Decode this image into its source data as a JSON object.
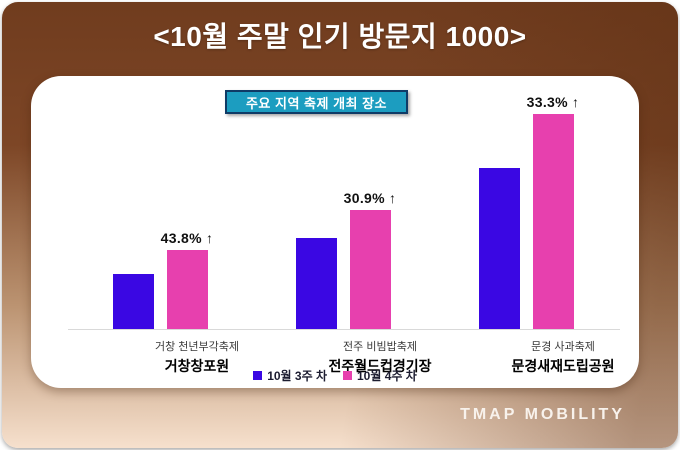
{
  "poster": {
    "title": "<10월 주말 인기 방문지 1000>",
    "brand": "TMAP MOBILITY",
    "colors": {
      "background_top": "#703c1e",
      "background_bottom_left": "#f6e0cd",
      "card": "#ffffff",
      "badge_bg": "#1c9dc0",
      "badge_border": "#0f3b66"
    }
  },
  "chart_data": {
    "type": "bar",
    "badge_title": "주요 지역 축제 개최 장소",
    "categories": [
      {
        "festival": "거창 천년부각축제",
        "place": "거창창포원",
        "change_label": "43.8% ↑"
      },
      {
        "festival": "전주 비빔밥축제",
        "place": "전주월드컵경기장",
        "change_label": "30.9% ↑"
      },
      {
        "festival": "문경 사과축제",
        "place": "문경새재도립공원",
        "change_label": "33.3% ↑"
      }
    ],
    "series": [
      {
        "name": "10월 3주 차",
        "color": "#3a07e3",
        "values": [
          100,
          166,
          293
        ]
      },
      {
        "name": "10월 4주 차",
        "color": "#e740ae",
        "values": [
          143.8,
          217.3,
          390.6
        ]
      }
    ],
    "legend_position": "bottom",
    "y_axis_shown": false,
    "values_note": "relative visit index estimated from bar heights; week-3 value of first venue set to 100"
  }
}
